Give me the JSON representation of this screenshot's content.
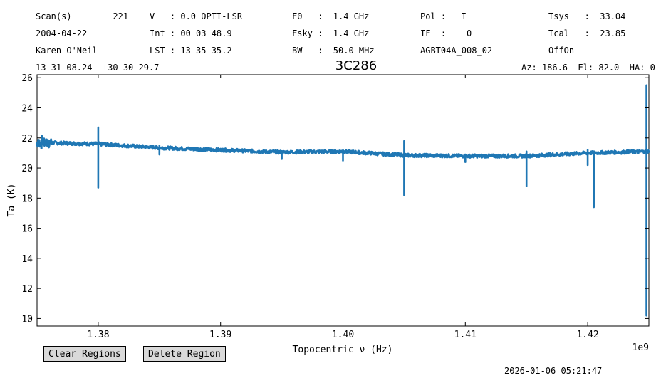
{
  "header": {
    "col1": [
      "Scan(s)        221",
      "2004-04-22",
      "Karen O'Neil"
    ],
    "col2": [
      "V   : 0.0 OPTI-LSR",
      "Int : 00 03 48.9",
      "LST : 13 35 35.2"
    ],
    "col3": [
      "F0   :  1.4 GHz",
      "Fsky :  1.4 GHz",
      "BW   :  50.0 MHz"
    ],
    "col4": [
      "Pol :   I",
      "IF  :    0",
      "AGBT04A_008_02"
    ],
    "col5": [
      "Tsys   :  33.04",
      "Tcal   :  23.85",
      "OffOn"
    ],
    "coords": "13 31 08.24  +30 30 29.7",
    "azel": "Az: 186.6  El: 82.0  HA: 0"
  },
  "buttons": {
    "clear": "Clear Regions",
    "delete": "Delete Region"
  },
  "timestamp": "2026-01-06 05:21:47",
  "chart_data": {
    "type": "line",
    "title": "3C286",
    "xlabel": "Topocentric ν (Hz)",
    "ylabel": "Ta (K)",
    "x_offset_label": "1e9",
    "xlim": [
      1.375,
      1.425
    ],
    "ylim": [
      9.5,
      26.2
    ],
    "xticks": [
      1.38,
      1.39,
      1.4,
      1.41,
      1.42
    ],
    "xtick_labels": [
      "1.38",
      "1.39",
      "1.40",
      "1.41",
      "1.42"
    ],
    "yticks": [
      10,
      12,
      14,
      16,
      18,
      20,
      22,
      24,
      26
    ],
    "ytick_labels": [
      "10",
      "12",
      "14",
      "16",
      "18",
      "20",
      "22",
      "24",
      "26"
    ],
    "grid": false,
    "color": "#1f77b4",
    "baseline": [
      [
        1.375,
        21.7
      ],
      [
        1.38,
        21.6
      ],
      [
        1.385,
        21.35
      ],
      [
        1.39,
        21.2
      ],
      [
        1.395,
        21.05
      ],
      [
        1.4,
        21.1
      ],
      [
        1.405,
        20.85
      ],
      [
        1.41,
        20.8
      ],
      [
        1.415,
        20.8
      ],
      [
        1.42,
        21.0
      ],
      [
        1.425,
        21.1
      ]
    ],
    "spikes": [
      {
        "x": 1.38,
        "min": 18.7,
        "max": 22.7
      },
      {
        "x": 1.385,
        "min": 20.9,
        "max": 21.5
      },
      {
        "x": 1.395,
        "min": 20.6,
        "max": 21.1
      },
      {
        "x": 1.4,
        "min": 20.5,
        "max": 21.2
      },
      {
        "x": 1.405,
        "min": 18.2,
        "max": 21.8
      },
      {
        "x": 1.41,
        "min": 20.4,
        "max": 20.9
      },
      {
        "x": 1.415,
        "min": 18.8,
        "max": 21.1
      },
      {
        "x": 1.42,
        "min": 20.2,
        "max": 21.2
      },
      {
        "x": 1.4205,
        "min": 17.4,
        "max": 21.1
      },
      {
        "x": 1.4248,
        "min": 10.2,
        "max": 25.5
      }
    ]
  }
}
